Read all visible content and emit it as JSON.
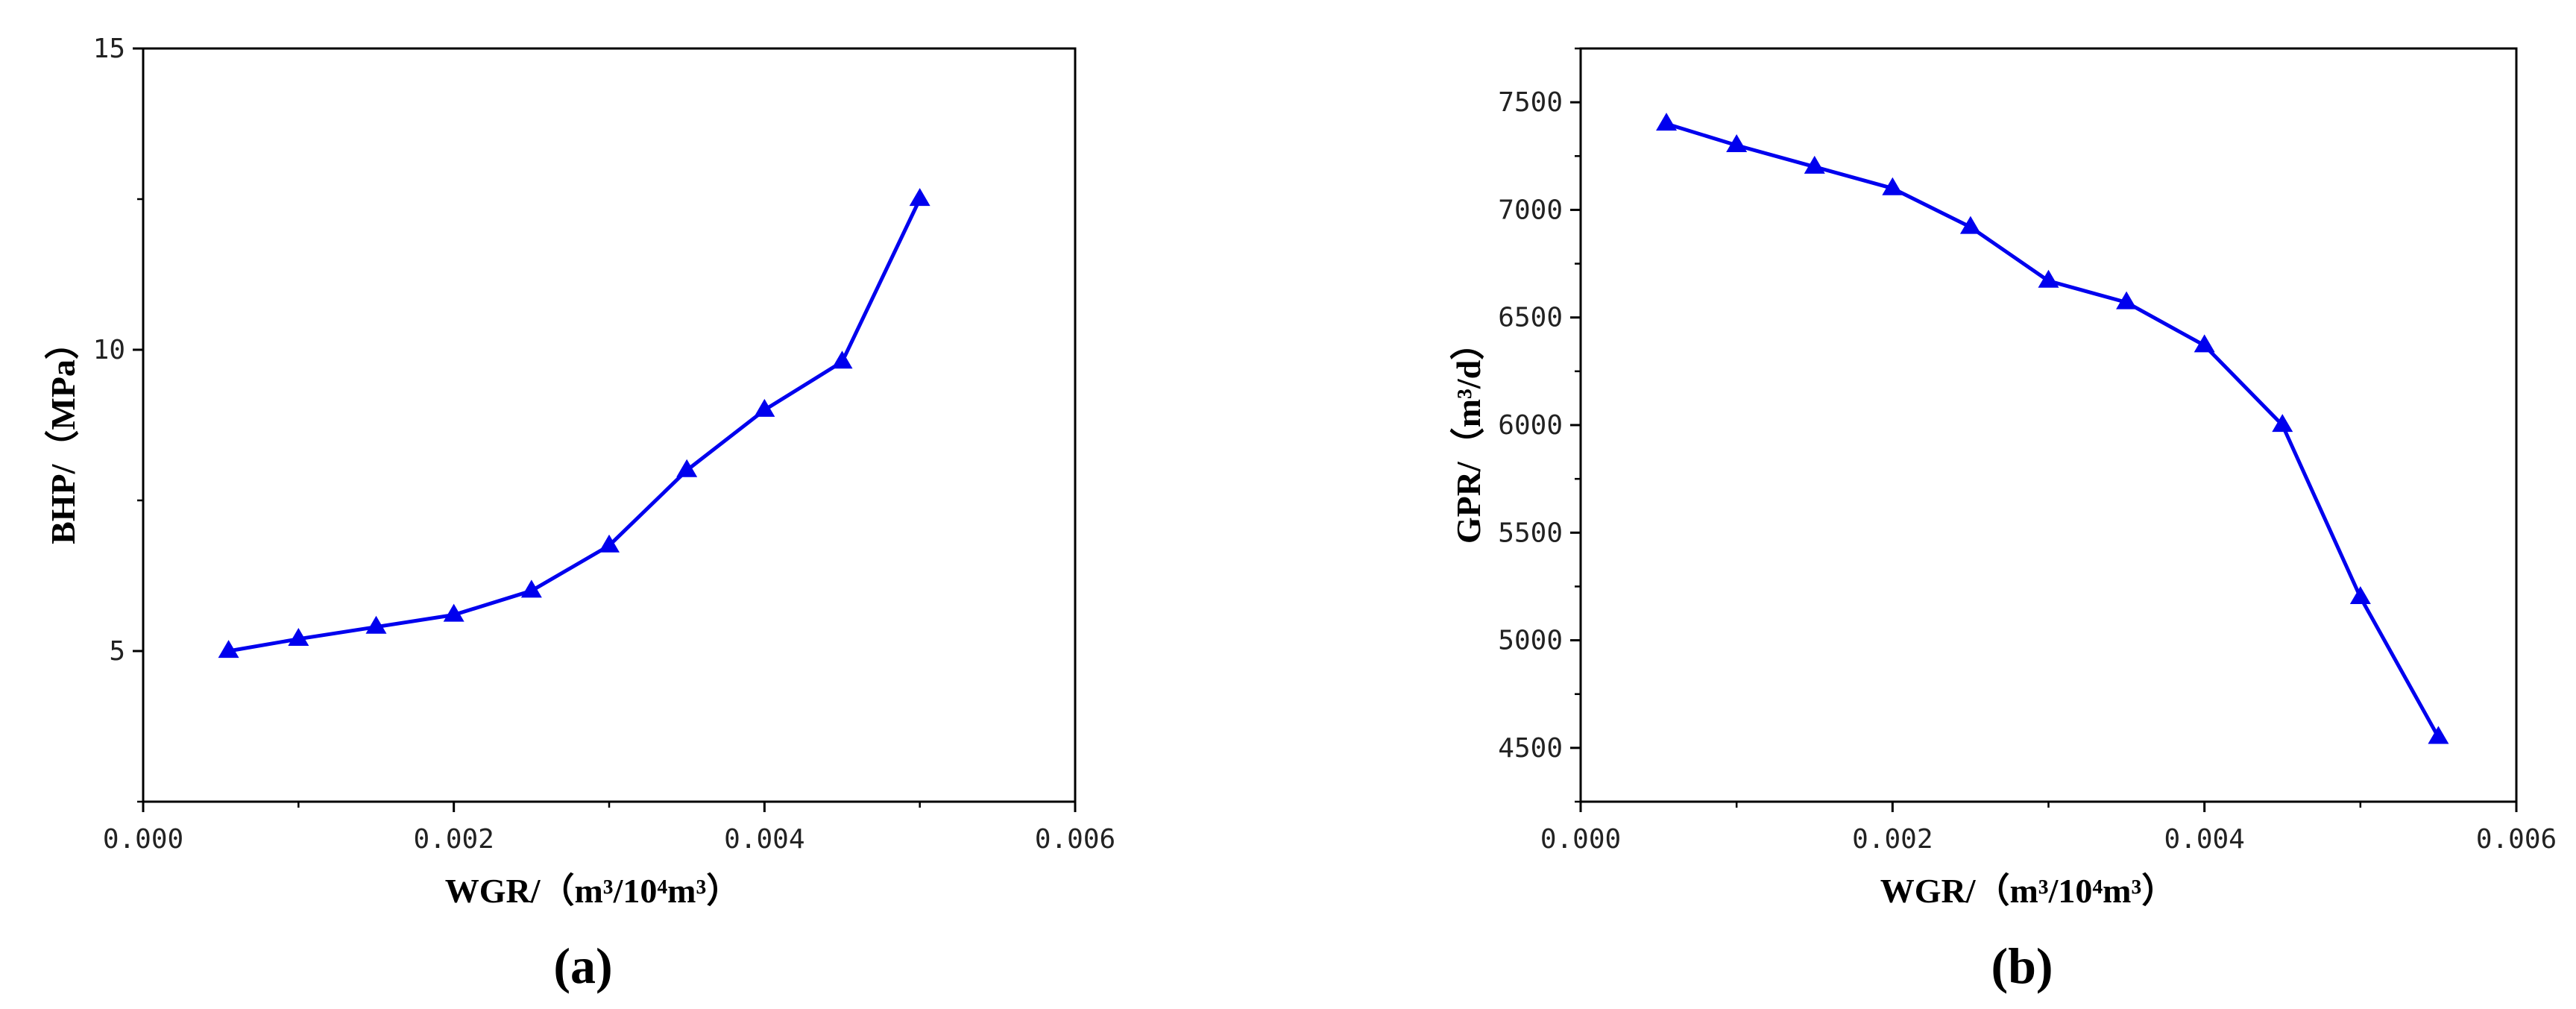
{
  "chart_data": [
    {
      "type": "line",
      "panel_label": "(a)",
      "xlabel": "WGR/（m³/10⁴m³）",
      "ylabel": "BHP/（MPa）",
      "xlim": [
        0.0,
        0.006
      ],
      "ylim": [
        2.5,
        15
      ],
      "xticks": [
        0.0,
        0.002,
        0.004,
        0.006
      ],
      "xtick_labels": [
        "0.000",
        "0.002",
        "0.004",
        "0.006"
      ],
      "yticks": [
        5,
        10,
        15
      ],
      "ytick_labels": [
        "5",
        "10",
        "15"
      ],
      "grid": false,
      "color": "#0000ee",
      "marker": "triangle",
      "series": [
        {
          "x": [
            0.00055,
            0.001,
            0.0015,
            0.002,
            0.0025,
            0.003,
            0.0035,
            0.004,
            0.0045,
            0.005
          ],
          "y": [
            5.0,
            5.2,
            5.4,
            5.6,
            6.0,
            6.75,
            8.0,
            9.0,
            9.8,
            12.5
          ]
        }
      ]
    },
    {
      "type": "line",
      "panel_label": "(b)",
      "xlabel": "WGR/（m³/10⁴m³）",
      "ylabel": "GPR/（m³/d）",
      "xlim": [
        0.0,
        0.006
      ],
      "ylim": [
        4250,
        7750
      ],
      "xticks": [
        0.0,
        0.002,
        0.004,
        0.006
      ],
      "xtick_labels": [
        "0.000",
        "0.002",
        "0.004",
        "0.006"
      ],
      "yticks": [
        4500,
        5000,
        5500,
        6000,
        6500,
        7000,
        7500
      ],
      "ytick_labels": [
        "4500",
        "5000",
        "5500",
        "6000",
        "6500",
        "7000",
        "7500"
      ],
      "grid": false,
      "color": "#0000ee",
      "marker": "triangle",
      "series": [
        {
          "x": [
            0.00055,
            0.001,
            0.0015,
            0.002,
            0.0025,
            0.003,
            0.0035,
            0.004,
            0.0045,
            0.005,
            0.0055
          ],
          "y": [
            7400,
            7300,
            7200,
            7100,
            6920,
            6670,
            6570,
            6370,
            6000,
            5200,
            4550
          ]
        }
      ]
    }
  ]
}
